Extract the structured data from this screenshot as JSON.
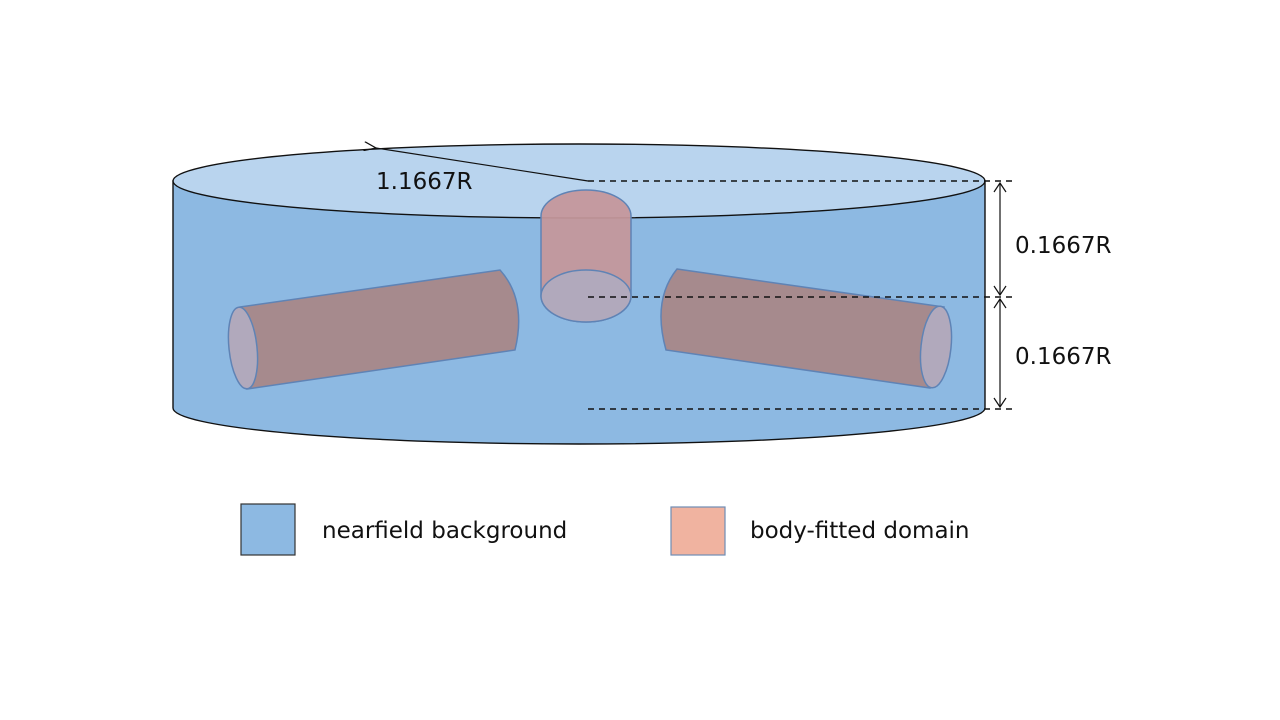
{
  "dimensions": {
    "radius_label": "1.1667R",
    "height_upper_label": "0.1667R",
    "height_lower_label": "0.1667R"
  },
  "legend": {
    "items": [
      {
        "label": "nearfield background",
        "color": "#8db9e2"
      },
      {
        "label": "body-fitted domain",
        "color": "#f0b3a0"
      }
    ]
  },
  "colors": {
    "cylinder_side": "#8db9e2",
    "cylinder_top": "#b9d4ee",
    "body_fill": "#a68a8d",
    "body_cap": "#b1a9bc",
    "hub_fill": "#c4979b"
  }
}
